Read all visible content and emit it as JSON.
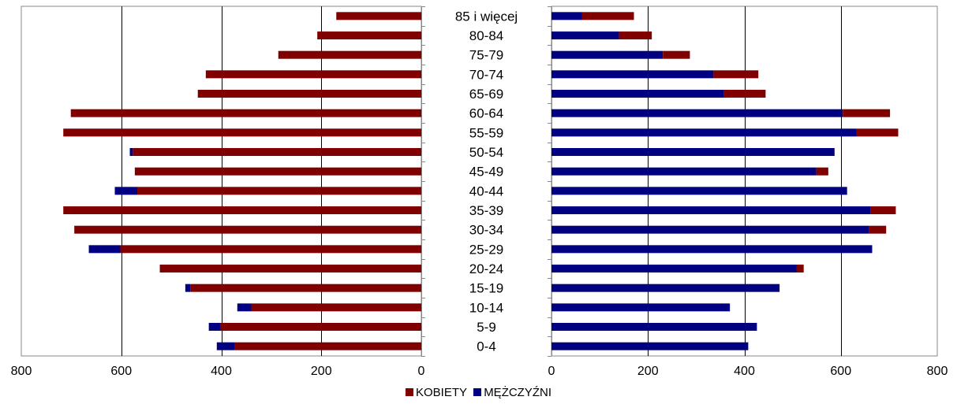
{
  "chart_data": {
    "type": "bar",
    "orientation": "horizontal",
    "layout": "population-pyramid",
    "categories": [
      "85 i więcej",
      "80-84",
      "75-79",
      "70-74",
      "65-69",
      "60-64",
      "55-59",
      "50-54",
      "45-49",
      "40-44",
      "35-39",
      "30-34",
      "25-29",
      "20-24",
      "15-19",
      "10-14",
      "5-9",
      "0-4"
    ],
    "panels": [
      {
        "side": "left",
        "xlim": [
          800,
          0
        ],
        "ticks": [
          800,
          600,
          400,
          200,
          0
        ],
        "series": [
          {
            "name": "KOBIETY",
            "values": [
              170,
              208,
              286,
              431,
              447,
              701,
              716,
              577,
              573,
              568,
              716,
              694,
              602,
              523,
              462,
              340,
              401,
              373
            ]
          },
          {
            "name": "MĘŻCZYŹNI",
            "values": [
              0,
              0,
              0,
              0,
              0,
              0,
              0,
              6,
              0,
              45,
              0,
              0,
              63,
              0,
              10,
              28,
              24,
              36
            ]
          }
        ]
      },
      {
        "side": "right",
        "xlim": [
          0,
          800
        ],
        "ticks": [
          0,
          200,
          400,
          600,
          800
        ],
        "series": [
          {
            "name": "MĘŻCZYŹNI",
            "values": [
              63,
              140,
              231,
              336,
              358,
              604,
              633,
              587,
              549,
              613,
              662,
              659,
              665,
              508,
              473,
              370,
              426,
              408
            ]
          },
          {
            "name": "KOBIETY",
            "values": [
              108,
              68,
              56,
              93,
              86,
              98,
              86,
              0,
              25,
              0,
              52,
              35,
              0,
              15,
              0,
              0,
              0,
              0
            ]
          }
        ]
      }
    ],
    "legend": {
      "position": "bottom",
      "entries": [
        "KOBIETY",
        "MĘŻCZYŹNI"
      ]
    },
    "grid": true,
    "colors": {
      "KOBIETY": "#800000",
      "MĘŻCZYŹNI": "#000080"
    }
  }
}
